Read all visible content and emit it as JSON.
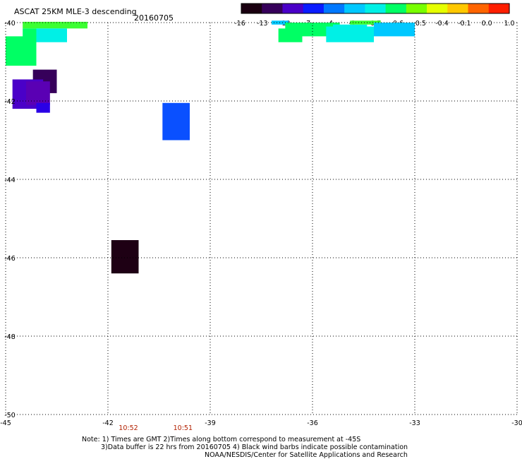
{
  "header": {
    "title": "ASCAT 25KM MLE-3 descending",
    "date": "20160705"
  },
  "colorbar": {
    "labels": [
      "-16",
      "-13",
      "-10",
      "-7",
      "-4",
      "-1",
      "-0.7",
      "-0.6",
      "-0.5",
      "-0.4",
      "-0.1",
      "0.0",
      "1.0"
    ],
    "colors": [
      "#1a0010",
      "#36005a",
      "#4a00c8",
      "#0a1cff",
      "#0078ff",
      "#00c8ff",
      "#00f0e6",
      "#00ff64",
      "#78ff00",
      "#e6ff00",
      "#ffc800",
      "#ff6400",
      "#ff1e00"
    ]
  },
  "axes": {
    "lon_labels": [
      "-45",
      "-42",
      "-39",
      "-36",
      "-33",
      "-30"
    ],
    "lon_values": [
      -45,
      -42,
      -39,
      -36,
      -33,
      -30
    ],
    "lat_labels": [
      "-40",
      "-42",
      "-44",
      "-46",
      "-48",
      "-50"
    ],
    "lat_values": [
      -40,
      -42,
      -44,
      -46,
      -48,
      -50
    ],
    "lon_range": [
      -45,
      -30
    ],
    "lat_range": [
      -50,
      -40
    ]
  },
  "times": [
    {
      "label": "10:52",
      "lon": -41.4,
      "color": "#b22000"
    },
    {
      "label": "10:51",
      "lon": -39.8,
      "color": "#b22000"
    }
  ],
  "cells": [
    {
      "lon": [
        -44.5,
        -42.6
      ],
      "lat": [
        -40.15,
        -39.98
      ],
      "color": "#3cff32"
    },
    {
      "lon": [
        -44.1,
        -43.2
      ],
      "lat": [
        -40.5,
        -40.15
      ],
      "color": "#00f0e6"
    },
    {
      "lon": [
        -44.5,
        -44.1
      ],
      "lat": [
        -40.5,
        -40.15
      ],
      "color": "#00ff64"
    },
    {
      "lon": [
        -45.0,
        -44.1
      ],
      "lat": [
        -41.1,
        -40.35
      ],
      "color": "#00ff64"
    },
    {
      "lon": [
        -44.2,
        -43.5
      ],
      "lat": [
        -41.8,
        -41.2
      ],
      "color": "#36005a"
    },
    {
      "lon": [
        -44.8,
        -43.9
      ],
      "lat": [
        -42.2,
        -41.45
      ],
      "color": "#4a00c8"
    },
    {
      "lon": [
        -44.4,
        -43.7
      ],
      "lat": [
        -42.1,
        -41.5
      ],
      "color": "#5a00b4"
    },
    {
      "lon": [
        -44.1,
        -43.7
      ],
      "lat": [
        -42.3,
        -42.05
      ],
      "color": "#2a00e6"
    },
    {
      "lon": [
        -40.4,
        -39.6
      ],
      "lat": [
        -43.0,
        -42.05
      ],
      "color": "#0a50ff"
    },
    {
      "lon": [
        -41.9,
        -41.1
      ],
      "lat": [
        -46.4,
        -45.55
      ],
      "color": "#1e0014"
    },
    {
      "lon": [
        -37.2,
        -36.7
      ],
      "lat": [
        -40.05,
        -39.95
      ],
      "color": "#00c8ff"
    },
    {
      "lon": [
        -36.8,
        -35.2
      ],
      "lat": [
        -40.35,
        -40.0
      ],
      "color": "#00ff64"
    },
    {
      "lon": [
        -37.0,
        -36.3
      ],
      "lat": [
        -40.5,
        -40.15
      ],
      "color": "#00ff64"
    },
    {
      "lon": [
        -35.4,
        -34.4
      ],
      "lat": [
        -40.35,
        -40.05
      ],
      "color": "#00f0e6"
    },
    {
      "lon": [
        -34.9,
        -34.0
      ],
      "lat": [
        -40.05,
        -39.95
      ],
      "color": "#3cff32"
    },
    {
      "lon": [
        -35.6,
        -34.2
      ],
      "lat": [
        -40.5,
        -40.1
      ],
      "color": "#00f0e6"
    },
    {
      "lon": [
        -34.2,
        -33.0
      ],
      "lat": [
        -40.35,
        -40.0
      ],
      "color": "#00c8ff"
    }
  ],
  "notes": [
    "Note: 1) Times are GMT 2)Times along bottom correspond to measurement at -45S",
    "3)Data buffer is 22 hrs from 20160705 4) Black wind barbs indicate possible contamination",
    "NOAA/NESDIS/Center for Satellite Applications and Research"
  ]
}
